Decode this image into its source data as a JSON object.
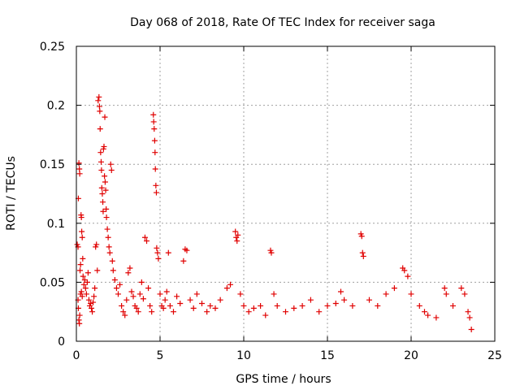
{
  "chart_data": {
    "type": "scatter",
    "title": "Day 068 of 2018, Rate Of TEC Index for receiver saga",
    "xlabel": "GPS time / hours",
    "ylabel": "ROTI / TECUs",
    "xlim": [
      0,
      25
    ],
    "ylim": [
      0,
      0.25
    ],
    "x_ticks": [
      0,
      5,
      10,
      15,
      20,
      25
    ],
    "x_tick_labels": [
      "0",
      "5",
      "10",
      "15",
      "20",
      "25"
    ],
    "y_ticks": [
      0,
      0.05,
      0.1,
      0.15,
      0.2,
      0.25
    ],
    "y_tick_labels": [
      "0",
      "0.05",
      "0.1",
      "0.15",
      "0.2",
      "0.25"
    ],
    "grid": true,
    "marker": "+",
    "color": "#e00000",
    "series": [
      {
        "name": "ROTI",
        "points": [
          [
            0.05,
            0.082
          ],
          [
            0.1,
            0.08
          ],
          [
            0.12,
            0.121
          ],
          [
            0.15,
            0.151
          ],
          [
            0.18,
            0.146
          ],
          [
            0.2,
            0.142
          ],
          [
            0.22,
            0.06
          ],
          [
            0.25,
            0.065
          ],
          [
            0.28,
            0.107
          ],
          [
            0.3,
            0.105
          ],
          [
            0.32,
            0.093
          ],
          [
            0.35,
            0.088
          ],
          [
            0.38,
            0.07
          ],
          [
            0.4,
            0.055
          ],
          [
            0.45,
            0.048
          ],
          [
            0.5,
            0.052
          ],
          [
            0.1,
            0.035
          ],
          [
            0.12,
            0.028
          ],
          [
            0.15,
            0.018
          ],
          [
            0.18,
            0.015
          ],
          [
            0.2,
            0.022
          ],
          [
            0.25,
            0.04
          ],
          [
            0.3,
            0.042
          ],
          [
            0.35,
            0.038
          ],
          [
            0.55,
            0.045
          ],
          [
            0.6,
            0.04
          ],
          [
            0.65,
            0.05
          ],
          [
            0.7,
            0.058
          ],
          [
            0.75,
            0.035
          ],
          [
            0.8,
            0.03
          ],
          [
            0.85,
            0.032
          ],
          [
            0.9,
            0.028
          ],
          [
            0.95,
            0.025
          ],
          [
            1.0,
            0.033
          ],
          [
            1.05,
            0.038
          ],
          [
            1.1,
            0.045
          ],
          [
            1.15,
            0.08
          ],
          [
            1.2,
            0.082
          ],
          [
            1.25,
            0.06
          ],
          [
            1.3,
            0.204
          ],
          [
            1.35,
            0.207
          ],
          [
            1.38,
            0.199
          ],
          [
            1.4,
            0.195
          ],
          [
            1.42,
            0.18
          ],
          [
            1.45,
            0.16
          ],
          [
            1.48,
            0.152
          ],
          [
            1.5,
            0.145
          ],
          [
            1.52,
            0.13
          ],
          [
            1.55,
            0.125
          ],
          [
            1.58,
            0.118
          ],
          [
            1.6,
            0.11
          ],
          [
            1.62,
            0.163
          ],
          [
            1.65,
            0.165
          ],
          [
            1.68,
            0.14
          ],
          [
            1.7,
            0.19
          ],
          [
            1.72,
            0.135
          ],
          [
            1.75,
            0.128
          ],
          [
            1.78,
            0.112
          ],
          [
            1.8,
            0.105
          ],
          [
            1.85,
            0.095
          ],
          [
            1.9,
            0.088
          ],
          [
            1.95,
            0.08
          ],
          [
            2.0,
            0.075
          ],
          [
            2.05,
            0.15
          ],
          [
            2.1,
            0.145
          ],
          [
            2.15,
            0.068
          ],
          [
            2.2,
            0.06
          ],
          [
            2.3,
            0.052
          ],
          [
            2.4,
            0.045
          ],
          [
            2.5,
            0.04
          ],
          [
            2.6,
            0.048
          ],
          [
            2.7,
            0.03
          ],
          [
            2.8,
            0.025
          ],
          [
            2.9,
            0.022
          ],
          [
            3.0,
            0.035
          ],
          [
            3.1,
            0.058
          ],
          [
            3.2,
            0.062
          ],
          [
            3.3,
            0.042
          ],
          [
            3.4,
            0.038
          ],
          [
            3.5,
            0.03
          ],
          [
            3.6,
            0.028
          ],
          [
            3.7,
            0.025
          ],
          [
            3.8,
            0.04
          ],
          [
            3.9,
            0.05
          ],
          [
            4.0,
            0.036
          ],
          [
            4.1,
            0.088
          ],
          [
            4.2,
            0.085
          ],
          [
            4.3,
            0.045
          ],
          [
            4.4,
            0.03
          ],
          [
            4.5,
            0.025
          ],
          [
            4.6,
            0.192
          ],
          [
            4.62,
            0.186
          ],
          [
            4.65,
            0.18
          ],
          [
            4.68,
            0.17
          ],
          [
            4.7,
            0.16
          ],
          [
            4.72,
            0.146
          ],
          [
            4.75,
            0.132
          ],
          [
            4.78,
            0.126
          ],
          [
            4.8,
            0.079
          ],
          [
            4.85,
            0.075
          ],
          [
            4.9,
            0.07
          ],
          [
            5.0,
            0.04
          ],
          [
            5.1,
            0.03
          ],
          [
            5.2,
            0.028
          ],
          [
            5.3,
            0.035
          ],
          [
            5.4,
            0.042
          ],
          [
            5.5,
            0.075
          ],
          [
            5.6,
            0.03
          ],
          [
            5.8,
            0.025
          ],
          [
            6.0,
            0.038
          ],
          [
            6.2,
            0.032
          ],
          [
            6.4,
            0.068
          ],
          [
            6.5,
            0.078
          ],
          [
            6.6,
            0.077
          ],
          [
            6.8,
            0.035
          ],
          [
            7.0,
            0.028
          ],
          [
            7.2,
            0.04
          ],
          [
            7.5,
            0.032
          ],
          [
            7.8,
            0.025
          ],
          [
            8.0,
            0.03
          ],
          [
            8.3,
            0.028
          ],
          [
            8.6,
            0.035
          ],
          [
            9.0,
            0.045
          ],
          [
            9.2,
            0.048
          ],
          [
            9.5,
            0.093
          ],
          [
            9.55,
            0.088
          ],
          [
            9.6,
            0.085
          ],
          [
            9.65,
            0.09
          ],
          [
            9.8,
            0.04
          ],
          [
            10.0,
            0.03
          ],
          [
            10.3,
            0.025
          ],
          [
            10.6,
            0.028
          ],
          [
            11.0,
            0.03
          ],
          [
            11.3,
            0.022
          ],
          [
            11.6,
            0.077
          ],
          [
            11.65,
            0.075
          ],
          [
            11.8,
            0.04
          ],
          [
            12.0,
            0.03
          ],
          [
            12.5,
            0.025
          ],
          [
            13.0,
            0.028
          ],
          [
            13.5,
            0.03
          ],
          [
            14.0,
            0.035
          ],
          [
            14.5,
            0.025
          ],
          [
            15.0,
            0.03
          ],
          [
            15.5,
            0.032
          ],
          [
            15.8,
            0.042
          ],
          [
            16.0,
            0.035
          ],
          [
            16.5,
            0.03
          ],
          [
            17.0,
            0.091
          ],
          [
            17.05,
            0.089
          ],
          [
            17.1,
            0.075
          ],
          [
            17.15,
            0.072
          ],
          [
            17.5,
            0.035
          ],
          [
            18.0,
            0.03
          ],
          [
            18.5,
            0.04
          ],
          [
            19.0,
            0.045
          ],
          [
            19.5,
            0.062
          ],
          [
            19.6,
            0.06
          ],
          [
            19.8,
            0.055
          ],
          [
            20.0,
            0.04
          ],
          [
            20.5,
            0.03
          ],
          [
            20.8,
            0.025
          ],
          [
            21.0,
            0.022
          ],
          [
            21.5,
            0.02
          ],
          [
            22.0,
            0.045
          ],
          [
            22.1,
            0.04
          ],
          [
            22.5,
            0.03
          ],
          [
            23.0,
            0.045
          ],
          [
            23.2,
            0.04
          ],
          [
            23.4,
            0.025
          ],
          [
            23.5,
            0.02
          ],
          [
            23.6,
            0.01
          ]
        ]
      }
    ]
  }
}
